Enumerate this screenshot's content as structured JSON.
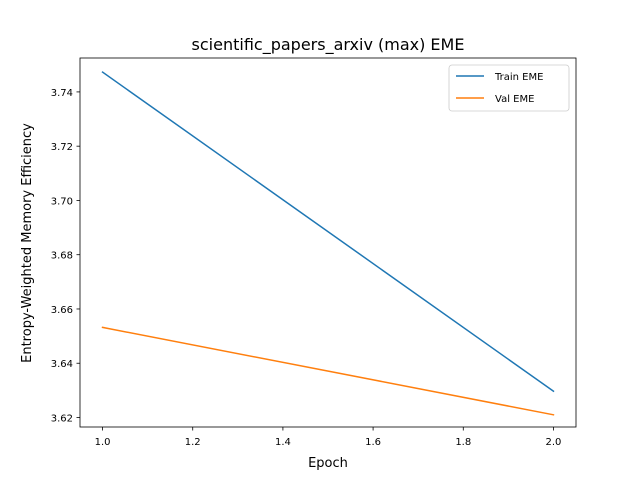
{
  "chart_data": {
    "type": "line",
    "title": "scientific_papers_arxiv (max) EME",
    "xlabel": "Epoch",
    "ylabel": "Entropy-Weighted Memory Efficiency",
    "xlim": [
      0.95,
      2.05
    ],
    "ylim": [
      3.6165,
      3.7525
    ],
    "xticks": [
      1.0,
      1.2,
      1.4,
      1.6,
      1.8,
      2.0
    ],
    "xtick_labels": [
      "1.0",
      "1.2",
      "1.4",
      "1.6",
      "1.8",
      "2.0"
    ],
    "yticks": [
      3.62,
      3.64,
      3.66,
      3.68,
      3.7,
      3.72,
      3.74
    ],
    "ytick_labels": [
      "3.62",
      "3.64",
      "3.66",
      "3.68",
      "3.70",
      "3.72",
      "3.74"
    ],
    "grid": false,
    "legend_position": "upper right",
    "series": [
      {
        "name": "Train EME",
        "color": "#1f77b4",
        "x": [
          1,
          2
        ],
        "y": [
          3.7473,
          3.6297
        ]
      },
      {
        "name": "Val EME",
        "color": "#ff7f0e",
        "x": [
          1,
          2
        ],
        "y": [
          3.6532,
          3.621
        ]
      }
    ]
  }
}
